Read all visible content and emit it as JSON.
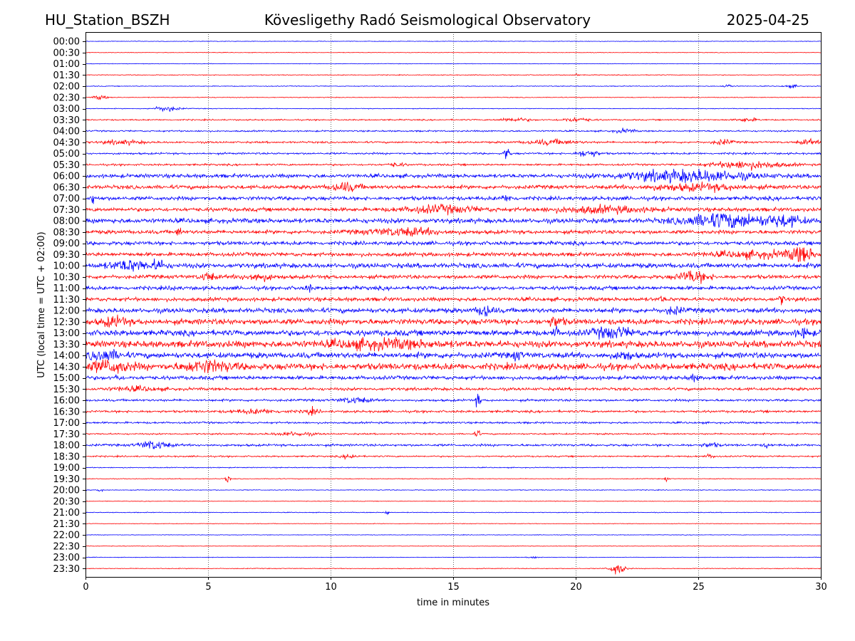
{
  "header": {
    "station": "HU_Station_BSZH",
    "observatory": "Kövesligethy Radó Seismological Observatory",
    "date": "2025-04-25"
  },
  "chart_data": {
    "type": "line",
    "title": "Kövesligethy Radó Seismological Observatory",
    "xlabel": "time in minutes",
    "ylabel": "UTC (local time = UTC + 02:00)",
    "xlim": [
      0,
      30
    ],
    "x_ticks": [
      0,
      5,
      10,
      15,
      20,
      25,
      30
    ],
    "x_tick_labels": [
      "0",
      "5",
      "10",
      "15",
      "20",
      "25",
      "30"
    ],
    "grid": "vertical dotted at x ticks",
    "colors": [
      "#0000ff",
      "#ff0000"
    ],
    "rows": [
      {
        "label": "00:00",
        "noise": 0.3,
        "events": []
      },
      {
        "label": "00:30",
        "noise": 0.3,
        "events": []
      },
      {
        "label": "01:00",
        "noise": 0.3,
        "events": []
      },
      {
        "label": "01:30",
        "noise": 0.4,
        "events": [
          {
            "t": 20.0,
            "a": 1.5,
            "w": 0.1
          }
        ]
      },
      {
        "label": "02:00",
        "noise": 0.4,
        "events": [
          {
            "t": 26.2,
            "a": 2.0,
            "w": 0.2
          },
          {
            "t": 28.8,
            "a": 1.5,
            "w": 0.3
          }
        ]
      },
      {
        "label": "02:30",
        "noise": 0.4,
        "events": [
          {
            "t": 0.6,
            "a": 2.5,
            "w": 0.25
          }
        ]
      },
      {
        "label": "03:00",
        "noise": 0.4,
        "events": [
          {
            "t": 3.3,
            "a": 3.0,
            "w": 0.5
          }
        ]
      },
      {
        "label": "03:30",
        "noise": 0.7,
        "events": [
          {
            "t": 17.5,
            "a": 2.0,
            "w": 0.6
          },
          {
            "t": 20.0,
            "a": 2.0,
            "w": 0.6
          },
          {
            "t": 27.0,
            "a": 2.0,
            "w": 0.4
          }
        ]
      },
      {
        "label": "04:00",
        "noise": 0.8,
        "events": [
          {
            "t": 22.0,
            "a": 2.0,
            "w": 0.4
          }
        ]
      },
      {
        "label": "04:30",
        "noise": 1.0,
        "events": [
          {
            "t": 1.5,
            "a": 2.0,
            "w": 0.8
          },
          {
            "t": 19.0,
            "a": 2.5,
            "w": 1.0
          },
          {
            "t": 26.0,
            "a": 2.5,
            "w": 0.4
          },
          {
            "t": 29.5,
            "a": 2.5,
            "w": 0.4
          }
        ]
      },
      {
        "label": "05:00",
        "noise": 1.0,
        "events": [
          {
            "t": 17.2,
            "a": 9.0,
            "w": 0.1
          },
          {
            "t": 20.5,
            "a": 4.0,
            "w": 0.4
          }
        ]
      },
      {
        "label": "05:30",
        "noise": 1.0,
        "events": [
          {
            "t": 12.7,
            "a": 2.0,
            "w": 0.3
          },
          {
            "t": 27.0,
            "a": 4.0,
            "w": 1.5
          }
        ]
      },
      {
        "label": "06:00",
        "noise": 2.0,
        "events": [
          {
            "t": 24.5,
            "a": 6.0,
            "w": 2.5
          }
        ]
      },
      {
        "label": "06:30",
        "noise": 2.0,
        "events": [
          {
            "t": 10.6,
            "a": 4.0,
            "w": 0.6
          },
          {
            "t": 25.0,
            "a": 3.0,
            "w": 2.0
          }
        ]
      },
      {
        "label": "07:00",
        "noise": 2.0,
        "events": [
          {
            "t": 0.3,
            "a": 5.0,
            "w": 0.1
          },
          {
            "t": 17.2,
            "a": 2.5,
            "w": 0.3
          }
        ]
      },
      {
        "label": "07:30",
        "noise": 2.0,
        "events": [
          {
            "t": 14.5,
            "a": 3.5,
            "w": 1.5
          },
          {
            "t": 21.0,
            "a": 3.0,
            "w": 2.0
          }
        ]
      },
      {
        "label": "08:00",
        "noise": 2.5,
        "events": [
          {
            "t": 26.0,
            "a": 8.0,
            "w": 1.5
          },
          {
            "t": 28.5,
            "a": 5.0,
            "w": 0.8
          }
        ]
      },
      {
        "label": "08:30",
        "noise": 2.0,
        "events": [
          {
            "t": 3.8,
            "a": 5.0,
            "w": 0.1
          },
          {
            "t": 13.0,
            "a": 3.5,
            "w": 1.5
          }
        ]
      },
      {
        "label": "09:00",
        "noise": 2.0,
        "events": []
      },
      {
        "label": "09:30",
        "noise": 2.0,
        "events": [
          {
            "t": 27.5,
            "a": 3.0,
            "w": 2.0
          },
          {
            "t": 29.2,
            "a": 9.0,
            "w": 0.4
          }
        ]
      },
      {
        "label": "10:00",
        "noise": 2.5,
        "events": [
          {
            "t": 1.8,
            "a": 5.0,
            "w": 0.8
          },
          {
            "t": 3.0,
            "a": 4.5,
            "w": 0.3
          }
        ]
      },
      {
        "label": "10:30",
        "noise": 2.0,
        "events": [
          {
            "t": 5.0,
            "a": 4.0,
            "w": 0.3
          },
          {
            "t": 7.0,
            "a": 3.5,
            "w": 0.6
          },
          {
            "t": 24.8,
            "a": 6.0,
            "w": 0.6
          }
        ]
      },
      {
        "label": "11:00",
        "noise": 2.0,
        "events": [
          {
            "t": 3.6,
            "a": 4.0,
            "w": 0.1
          },
          {
            "t": 9.1,
            "a": 4.0,
            "w": 0.1
          }
        ]
      },
      {
        "label": "11:30",
        "noise": 2.0,
        "events": [
          {
            "t": 23.5,
            "a": 3.0,
            "w": 0.1
          },
          {
            "t": 28.4,
            "a": 5.0,
            "w": 0.1
          }
        ]
      },
      {
        "label": "12:00",
        "noise": 2.5,
        "events": [
          {
            "t": 16.3,
            "a": 6.0,
            "w": 0.3
          },
          {
            "t": 24.0,
            "a": 3.5,
            "w": 0.3
          }
        ]
      },
      {
        "label": "12:30",
        "noise": 3.0,
        "events": [
          {
            "t": 1.2,
            "a": 4.5,
            "w": 0.5
          },
          {
            "t": 19.2,
            "a": 4.5,
            "w": 0.3
          }
        ]
      },
      {
        "label": "13:00",
        "noise": 3.0,
        "events": [
          {
            "t": 19.2,
            "a": 7.0,
            "w": 0.1
          },
          {
            "t": 21.5,
            "a": 5.0,
            "w": 0.8
          },
          {
            "t": 29.3,
            "a": 4.0,
            "w": 0.3
          }
        ]
      },
      {
        "label": "13:30",
        "noise": 3.5,
        "events": [
          {
            "t": 12.0,
            "a": 4.0,
            "w": 2.0
          }
        ]
      },
      {
        "label": "14:00",
        "noise": 3.0,
        "events": [
          {
            "t": 0.8,
            "a": 5.0,
            "w": 0.6
          },
          {
            "t": 17.6,
            "a": 4.0,
            "w": 0.2
          },
          {
            "t": 22.0,
            "a": 4.0,
            "w": 0.3
          }
        ]
      },
      {
        "label": "14:30",
        "noise": 3.5,
        "events": [
          {
            "t": 1.0,
            "a": 6.0,
            "w": 0.8
          },
          {
            "t": 5.0,
            "a": 5.0,
            "w": 1.0
          }
        ]
      },
      {
        "label": "15:00",
        "noise": 2.0,
        "events": [
          {
            "t": 1.3,
            "a": 3.5,
            "w": 0.1
          },
          {
            "t": 24.8,
            "a": 3.0,
            "w": 0.2
          }
        ]
      },
      {
        "label": "15:30",
        "noise": 1.5,
        "events": [
          {
            "t": 2.0,
            "a": 2.0,
            "w": 1.0
          }
        ]
      },
      {
        "label": "16:00",
        "noise": 1.2,
        "events": [
          {
            "t": 16.0,
            "a": 8.0,
            "w": 0.1
          },
          {
            "t": 11.0,
            "a": 3.0,
            "w": 0.6
          }
        ]
      },
      {
        "label": "16:30",
        "noise": 1.2,
        "events": [
          {
            "t": 9.2,
            "a": 3.0,
            "w": 0.3
          },
          {
            "t": 7.0,
            "a": 2.0,
            "w": 1.0
          }
        ]
      },
      {
        "label": "17:00",
        "noise": 1.0,
        "events": []
      },
      {
        "label": "17:30",
        "noise": 0.8,
        "events": [
          {
            "t": 16.0,
            "a": 4.0,
            "w": 0.1
          },
          {
            "t": 8.5,
            "a": 2.0,
            "w": 0.8
          }
        ]
      },
      {
        "label": "18:00",
        "noise": 1.2,
        "events": [
          {
            "t": 2.8,
            "a": 4.5,
            "w": 0.6
          },
          {
            "t": 27.8,
            "a": 3.0,
            "w": 0.1
          },
          {
            "t": 25.5,
            "a": 2.5,
            "w": 0.3
          }
        ]
      },
      {
        "label": "18:30",
        "noise": 0.8,
        "events": [
          {
            "t": 10.8,
            "a": 2.5,
            "w": 0.3
          },
          {
            "t": 25.5,
            "a": 2.0,
            "w": 0.2
          }
        ]
      },
      {
        "label": "19:00",
        "noise": 0.5,
        "events": []
      },
      {
        "label": "19:30",
        "noise": 0.4,
        "events": [
          {
            "t": 5.8,
            "a": 4.0,
            "w": 0.1
          },
          {
            "t": 23.7,
            "a": 2.5,
            "w": 0.1
          }
        ]
      },
      {
        "label": "20:00",
        "noise": 0.4,
        "events": [
          {
            "t": 0.6,
            "a": 2.0,
            "w": 0.1
          }
        ]
      },
      {
        "label": "20:30",
        "noise": 0.3,
        "events": []
      },
      {
        "label": "21:00",
        "noise": 0.4,
        "events": [
          {
            "t": 12.3,
            "a": 2.5,
            "w": 0.1
          }
        ]
      },
      {
        "label": "21:30",
        "noise": 0.3,
        "events": []
      },
      {
        "label": "22:00",
        "noise": 0.3,
        "events": []
      },
      {
        "label": "22:30",
        "noise": 0.3,
        "events": []
      },
      {
        "label": "23:00",
        "noise": 0.3,
        "events": [
          {
            "t": 18.3,
            "a": 1.5,
            "w": 0.2
          }
        ]
      },
      {
        "label": "23:30",
        "noise": 0.4,
        "events": [
          {
            "t": 21.7,
            "a": 7.0,
            "w": 0.3
          }
        ]
      }
    ]
  }
}
